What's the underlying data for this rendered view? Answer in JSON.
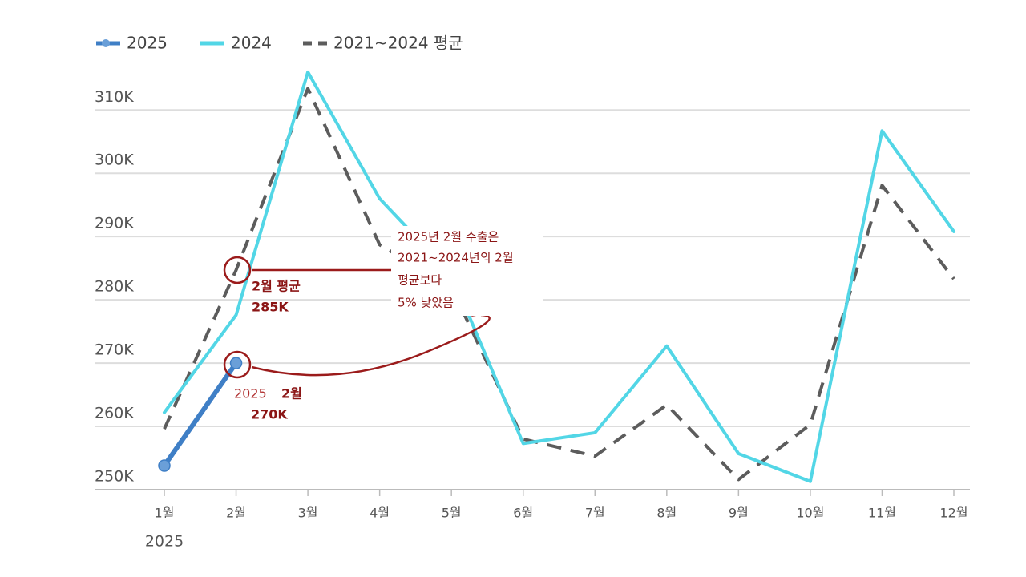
{
  "chart_data": {
    "type": "line",
    "categories": [
      "1월",
      "2월",
      "3월",
      "4월",
      "5월",
      "6월",
      "7월",
      "8월",
      "9월",
      "10월",
      "11월",
      "12월"
    ],
    "x_sublabel": "2025",
    "series": [
      {
        "name": "2025",
        "color": "#3f7fc6",
        "style": "solid",
        "values": [
          253800,
          270000,
          null,
          null,
          null,
          null,
          null,
          null,
          null,
          null,
          null,
          null
        ]
      },
      {
        "name": "2024",
        "color": "#52d6e6",
        "style": "solid",
        "values": [
          262200,
          277600,
          316000,
          296000,
          284000,
          257300,
          259000,
          272700,
          255700,
          251300,
          306700,
          290800
        ]
      },
      {
        "name": "2021~2024 평균",
        "color": "#5c5c5c",
        "style": "dashed",
        "values": [
          259600,
          284700,
          313400,
          288700,
          282000,
          258000,
          255300,
          263400,
          251600,
          260300,
          298100,
          283300
        ]
      }
    ],
    "ylim": [
      250000,
      317000
    ],
    "yticks": [
      {
        "value": 250000,
        "label": "250K"
      },
      {
        "value": 260000,
        "label": "260K"
      },
      {
        "value": 270000,
        "label": "270K"
      },
      {
        "value": 280000,
        "label": "280K"
      },
      {
        "value": 290000,
        "label": "290K"
      },
      {
        "value": 300000,
        "label": "300K"
      },
      {
        "value": 310000,
        "label": "310K"
      }
    ],
    "grid": true,
    "legend": "top-left",
    "annotations": {
      "avg_label": "2월 평균",
      "avg_value": "285K",
      "cur_year": "2025",
      "cur_month": "2월",
      "cur_value": "270K",
      "callout": [
        "2025년 2월 수출은",
        "2021~2024년의 2월",
        "평균보다",
        "5% 낮았음"
      ]
    }
  }
}
